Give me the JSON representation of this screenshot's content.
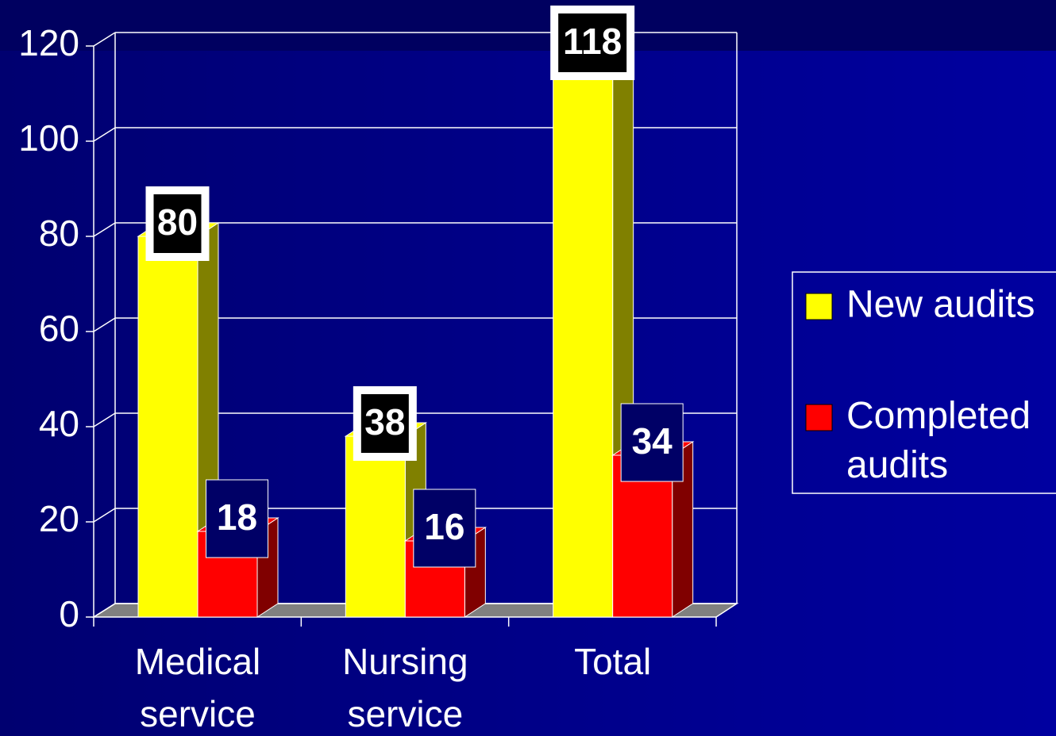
{
  "chart_data": {
    "type": "bar3d",
    "categories": [
      "Medical service",
      "Nursing service",
      "Total"
    ],
    "series": [
      {
        "name": "New audits",
        "color": "#ffff00",
        "side": "#808000",
        "values": [
          80,
          38,
          118
        ]
      },
      {
        "name": "Completed audits",
        "color": "#ff0000",
        "side": "#800000",
        "values": [
          18,
          16,
          34
        ]
      }
    ],
    "ylim": [
      0,
      120
    ],
    "yticks": [
      0,
      20,
      40,
      60,
      80,
      100,
      120
    ],
    "grid": true,
    "legend": "right"
  }
}
